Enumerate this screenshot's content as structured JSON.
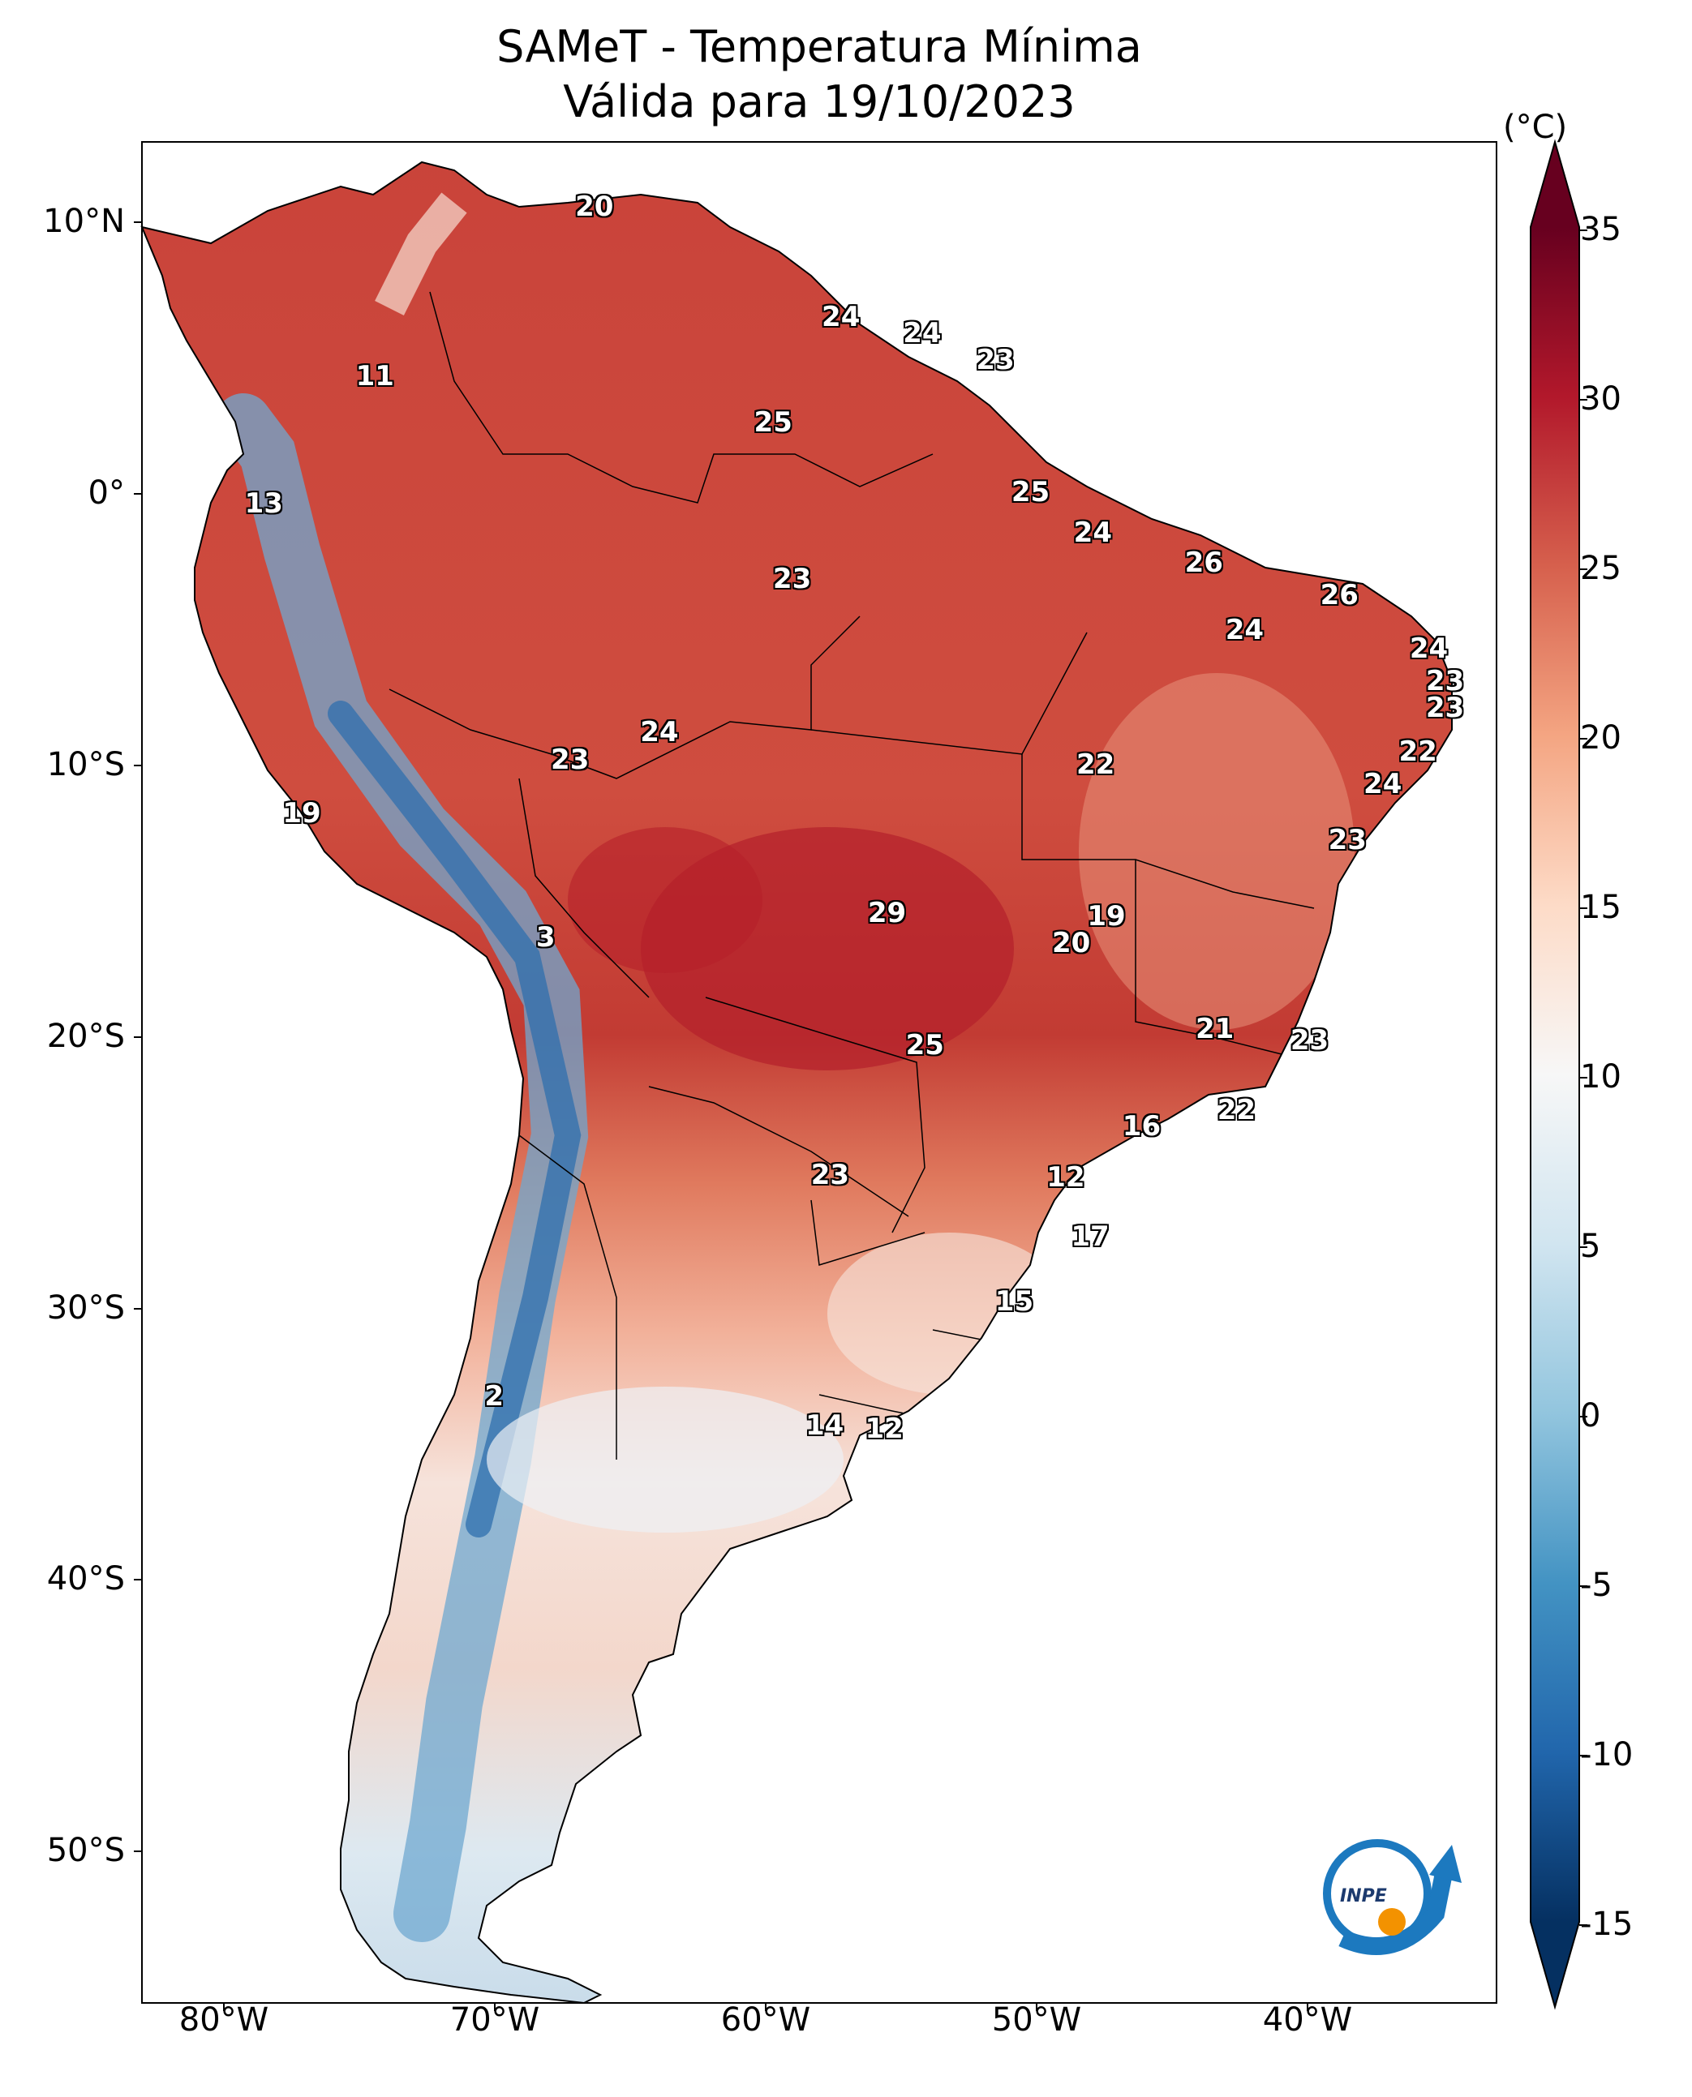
{
  "title": {
    "line1": "SAMeT - Temperatura Mínima",
    "line2": "Válida para 19/10/2023"
  },
  "map": {
    "region": "South America",
    "variable": "minimum temperature",
    "lat_range": [
      -56,
      13
    ],
    "lon_range": [
      -83,
      -33
    ],
    "lat_ticks": [
      "10°N",
      "0°",
      "10°S",
      "20°S",
      "30°S",
      "40°S",
      "50°S"
    ],
    "lon_ticks": [
      "80°W",
      "70°W",
      "60°W",
      "50°W",
      "40°W"
    ],
    "ocean_color": "#ffffff",
    "boundary_color": "#000000"
  },
  "colorbar": {
    "unit": "(°C)",
    "ticks": [
      "35",
      "30",
      "25",
      "20",
      "15",
      "10",
      "5",
      "0",
      "-5",
      "-10",
      "-15"
    ],
    "range": [
      -15,
      35
    ],
    "extend": "both",
    "colormap": "RdBu_r",
    "colors": [
      "#053061",
      "#2166ac",
      "#4393c3",
      "#92c5de",
      "#d1e5f0",
      "#f7f7f7",
      "#fddbc7",
      "#f4a582",
      "#d6604d",
      "#b2182b",
      "#67001f"
    ]
  },
  "annotations": [
    {
      "value": "20",
      "lon": -66.3,
      "lat": 10.6
    },
    {
      "value": "24",
      "lon": -57.2,
      "lat": 6.5
    },
    {
      "value": "24",
      "lon": -54.2,
      "lat": 5.9
    },
    {
      "value": "23",
      "lon": -51.5,
      "lat": 4.9
    },
    {
      "value": "11",
      "lon": -74.4,
      "lat": 4.3
    },
    {
      "value": "25",
      "lon": -59.7,
      "lat": 2.6
    },
    {
      "value": "13",
      "lon": -78.5,
      "lat": -0.4
    },
    {
      "value": "25",
      "lon": -50.2,
      "lat": 0.0
    },
    {
      "value": "24",
      "lon": -47.9,
      "lat": -1.5
    },
    {
      "value": "26",
      "lon": -43.8,
      "lat": -2.6
    },
    {
      "value": "23",
      "lon": -59.0,
      "lat": -3.2
    },
    {
      "value": "26",
      "lon": -38.8,
      "lat": -3.8
    },
    {
      "value": "24",
      "lon": -42.3,
      "lat": -5.1
    },
    {
      "value": "24",
      "lon": -35.5,
      "lat": -5.8
    },
    {
      "value": "23",
      "lon": -34.9,
      "lat": -7.0
    },
    {
      "value": "23",
      "lon": -34.9,
      "lat": -8.0
    },
    {
      "value": "24",
      "lon": -63.9,
      "lat": -8.9
    },
    {
      "value": "22",
      "lon": -47.8,
      "lat": -10.1
    },
    {
      "value": "23",
      "lon": -67.2,
      "lat": -9.9
    },
    {
      "value": "22",
      "lon": -35.9,
      "lat": -9.6
    },
    {
      "value": "24",
      "lon": -37.2,
      "lat": -10.8
    },
    {
      "value": "19",
      "lon": -77.1,
      "lat": -11.9
    },
    {
      "value": "23",
      "lon": -38.5,
      "lat": -12.9
    },
    {
      "value": "29",
      "lon": -55.5,
      "lat": -15.6
    },
    {
      "value": "19",
      "lon": -47.4,
      "lat": -15.7
    },
    {
      "value": "20",
      "lon": -48.7,
      "lat": -16.7
    },
    {
      "value": "3",
      "lon": -68.1,
      "lat": -16.5
    },
    {
      "value": "21",
      "lon": -43.4,
      "lat": -19.9
    },
    {
      "value": "25",
      "lon": -54.1,
      "lat": -20.5
    },
    {
      "value": "23",
      "lon": -39.9,
      "lat": -20.3
    },
    {
      "value": "22",
      "lon": -42.6,
      "lat": -22.9
    },
    {
      "value": "16",
      "lon": -46.1,
      "lat": -23.5
    },
    {
      "value": "23",
      "lon": -57.6,
      "lat": -25.3
    },
    {
      "value": "12",
      "lon": -48.9,
      "lat": -25.4
    },
    {
      "value": "17",
      "lon": -48.0,
      "lat": -27.6
    },
    {
      "value": "15",
      "lon": -50.8,
      "lat": -30.0
    },
    {
      "value": "2",
      "lon": -70.0,
      "lat": -33.5
    },
    {
      "value": "14",
      "lon": -57.8,
      "lat": -34.6
    },
    {
      "value": "12",
      "lon": -55.6,
      "lat": -34.7
    }
  ],
  "logo": {
    "text": "INPE"
  }
}
